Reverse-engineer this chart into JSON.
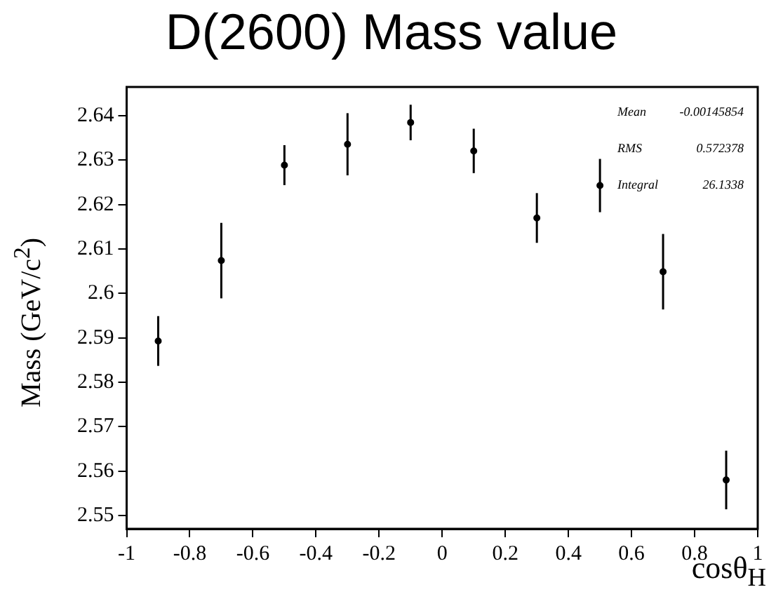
{
  "chart_data": {
    "type": "scatter",
    "title": "D(2600) Mass value",
    "xlabel": "cosθ$_{H}$",
    "ylabel": "Mass (GeV/c$^{2}$)",
    "x": [
      -0.9,
      -0.7,
      -0.5,
      -0.3,
      -0.1,
      0.1,
      0.3,
      0.5,
      0.7,
      0.9
    ],
    "series": [
      {
        "color": "#000000",
        "values": [
          2.5893,
          2.6074,
          2.6289,
          2.6336,
          2.6385,
          2.6321,
          2.617,
          2.6243,
          2.6049,
          2.558
        ],
        "errors": [
          0.0056,
          0.0085,
          0.0045,
          0.007,
          0.004,
          0.005,
          0.0056,
          0.006,
          0.0085,
          0.0066
        ]
      }
    ],
    "xlim": [
      -1,
      1
    ],
    "xticks": [
      -1,
      -0.8,
      -0.6,
      -0.4,
      -0.2,
      0,
      0.2,
      0.4,
      0.6,
      0.8,
      1
    ],
    "ylim": [
      2.547,
      2.6465
    ],
    "yticks": [
      2.55,
      2.56,
      2.57,
      2.58,
      2.59,
      2.6,
      2.61,
      2.62,
      2.63,
      2.64
    ],
    "grid": false,
    "legend": false,
    "marker": "circle",
    "annotations": [
      "Mean",
      "-0.00145854",
      "RMS",
      "0.572378",
      "Integral",
      "26.1338"
    ]
  }
}
